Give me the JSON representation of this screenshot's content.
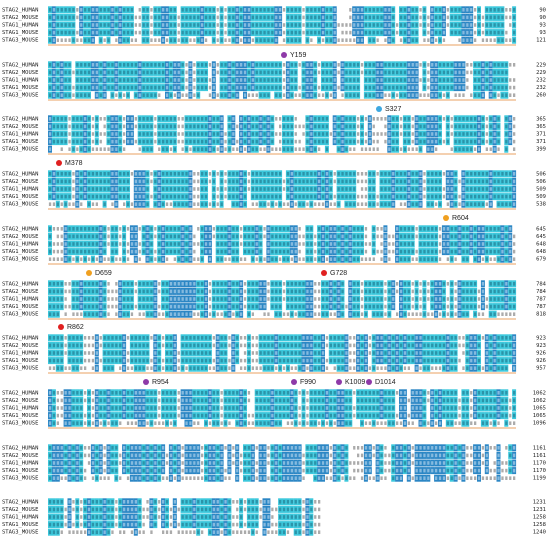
{
  "blocks": [
    {
      "rows": [
        {
          "name": "STAG2_HUMAN",
          "end": 90
        },
        {
          "name": "STAG2_MOUSE",
          "end": 90
        },
        {
          "name": "STAG1_HUMAN",
          "end": 93
        },
        {
          "name": "STAG1_MOUSE",
          "end": 93
        },
        {
          "name": "STAG3_MOUSE",
          "end": 121
        }
      ]
    },
    {
      "rows": [
        {
          "name": "STAG2_HUMAN",
          "end": 229
        },
        {
          "name": "STAG2_MOUSE",
          "end": 229
        },
        {
          "name": "STAG1_HUMAN",
          "end": 232
        },
        {
          "name": "STAG1_MOUSE",
          "end": 232
        },
        {
          "name": "STAG3_MOUSE",
          "end": 260
        }
      ]
    },
    {
      "rows": [
        {
          "name": "STAG2_HUMAN",
          "end": 365
        },
        {
          "name": "STAG2_MOUSE",
          "end": 365
        },
        {
          "name": "STAG1_HUMAN",
          "end": 371
        },
        {
          "name": "STAG1_MOUSE",
          "end": 371
        },
        {
          "name": "STAG3_MOUSE",
          "end": 399
        }
      ]
    },
    {
      "rows": [
        {
          "name": "STAG2_HUMAN",
          "end": 506
        },
        {
          "name": "STAG2_MOUSE",
          "end": 506
        },
        {
          "name": "STAG1_HUMAN",
          "end": 509
        },
        {
          "name": "STAG1_MOUSE",
          "end": 509
        },
        {
          "name": "STAG3_MOUSE",
          "end": 538
        }
      ]
    },
    {
      "rows": [
        {
          "name": "STAG2_HUMAN",
          "end": 645
        },
        {
          "name": "STAG2_MOUSE",
          "end": 645
        },
        {
          "name": "STAG1_HUMAN",
          "end": 648
        },
        {
          "name": "STAG1_MOUSE",
          "end": 648
        },
        {
          "name": "STAG3_MOUSE",
          "end": 679
        }
      ]
    },
    {
      "rows": [
        {
          "name": "STAG2_HUMAN",
          "end": 784
        },
        {
          "name": "STAG2_MOUSE",
          "end": 784
        },
        {
          "name": "STAG1_HUMAN",
          "end": 787
        },
        {
          "name": "STAG1_MOUSE",
          "end": 787
        },
        {
          "name": "STAG3_MOUSE",
          "end": 818
        }
      ]
    },
    {
      "rows": [
        {
          "name": "STAG2_HUMAN",
          "end": 923
        },
        {
          "name": "STAG2_MOUSE",
          "end": 923
        },
        {
          "name": "STAG1_HUMAN",
          "end": 926
        },
        {
          "name": "STAG1_MOUSE",
          "end": 926
        },
        {
          "name": "STAG3_MOUSE",
          "end": 957
        }
      ]
    },
    {
      "rows": [
        {
          "name": "STAG2_HUMAN",
          "end": 1062
        },
        {
          "name": "STAG2_MOUSE",
          "end": 1062
        },
        {
          "name": "STAG1_HUMAN",
          "end": 1065
        },
        {
          "name": "STAG1_MOUSE",
          "end": 1065
        },
        {
          "name": "STAG3_MOUSE",
          "end": 1096
        }
      ]
    },
    {
      "rows": [
        {
          "name": "STAG2_HUMAN",
          "end": 1161
        },
        {
          "name": "STAG2_MOUSE",
          "end": 1161
        },
        {
          "name": "STAG1_HUMAN",
          "end": 1170
        },
        {
          "name": "STAG1_MOUSE",
          "end": 1170
        },
        {
          "name": "STAG3_MOUSE",
          "end": 1199
        }
      ]
    },
    {
      "rows": [
        {
          "name": "STAG2_HUMAN",
          "end": 1231
        },
        {
          "name": "STAG2_MOUSE",
          "end": 1231
        },
        {
          "name": "STAG1_HUMAN",
          "end": 1258
        },
        {
          "name": "STAG1_MOUSE",
          "end": 1258
        },
        {
          "name": "STAG3_MOUSE",
          "end": 1240
        }
      ]
    }
  ],
  "sites": [
    {
      "label": "Y159",
      "color": "#8e3aa8"
    },
    {
      "label": "S327",
      "color": "#3ea8e0"
    },
    {
      "label": "M378",
      "color": "#e02020"
    },
    {
      "label": "R604",
      "color": "#f0a020"
    },
    {
      "label": "D659",
      "color": "#f0a020"
    },
    {
      "label": "G728",
      "color": "#e02020"
    },
    {
      "label": "R862",
      "color": "#e02020"
    },
    {
      "label": "R954",
      "color": "#8e3aa8"
    },
    {
      "label": "F990",
      "color": "#8e3aa8"
    },
    {
      "label": "K1009",
      "color": "#8e3aa8"
    },
    {
      "label": "D1014",
      "color": "#8e3aa8"
    }
  ]
}
